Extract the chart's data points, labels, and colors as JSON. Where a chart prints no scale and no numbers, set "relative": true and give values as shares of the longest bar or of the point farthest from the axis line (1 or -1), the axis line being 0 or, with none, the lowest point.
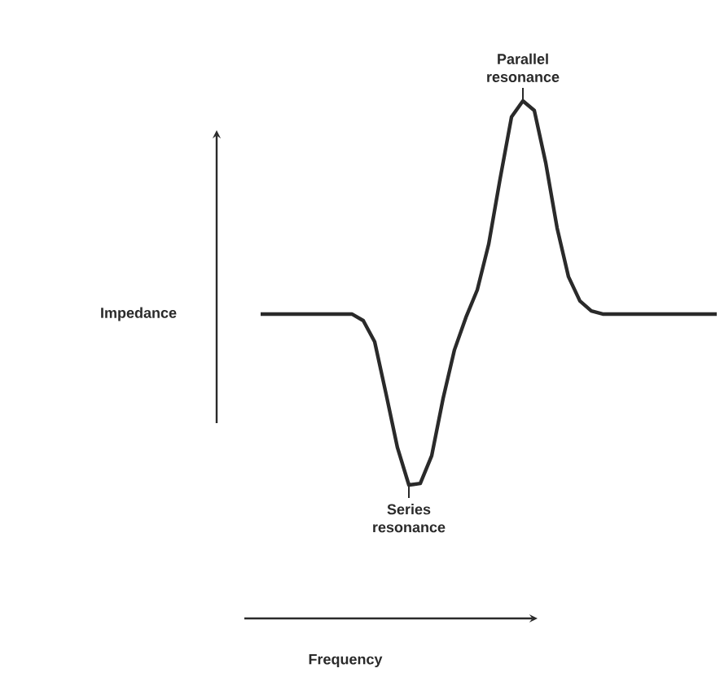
{
  "chart_data": {
    "type": "line",
    "relative": true,
    "color": "#2a2a2a",
    "categories": [
      null,
      null,
      null,
      null,
      null,
      null,
      null,
      null,
      null,
      null,
      null,
      null,
      null,
      null,
      null,
      null,
      null,
      null,
      null,
      null,
      null,
      null,
      null,
      null,
      null,
      null,
      null,
      null,
      null,
      null,
      null,
      null,
      null,
      null,
      null,
      null,
      null,
      null,
      null,
      null,
      null
    ],
    "values": [
      0.445,
      0.445,
      0.445,
      0.445,
      0.445,
      0.445,
      0.445,
      0.445,
      0.445,
      0.428,
      0.373,
      0.237,
      0.097,
      0,
      0.004,
      0.076,
      0.225,
      0.352,
      0.436,
      0.508,
      0.627,
      0.797,
      0.958,
      1,
      0.975,
      0.839,
      0.669,
      0.542,
      0.479,
      0.453,
      0.445,
      0.445,
      0.445,
      0.445,
      0.445,
      0.445,
      0.445,
      0.445,
      0.445,
      0.445,
      0.445
    ],
    "annotations": [
      {
        "text": "Parallel resonance",
        "y": 1
      },
      {
        "text": "Series resonance",
        "y": 0
      },
      "Impedance",
      "Frequency"
    ]
  }
}
